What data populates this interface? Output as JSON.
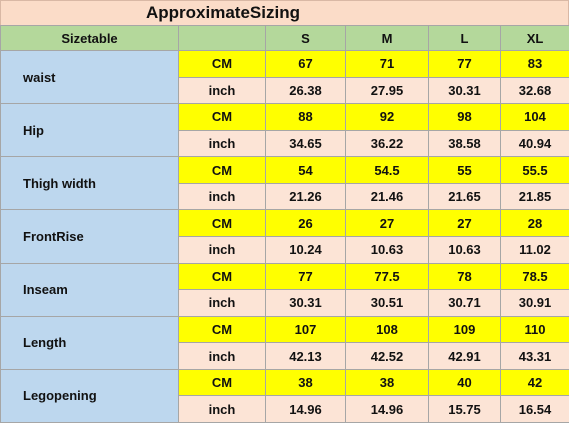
{
  "title": "ApproximateSizing",
  "header": {
    "label": "Sizetable",
    "sizes": [
      "S",
      "M",
      "L",
      "XL"
    ]
  },
  "groups": [
    {
      "name": "waist",
      "rows": [
        {
          "unit": "CM",
          "values": [
            67,
            71,
            77,
            83
          ]
        },
        {
          "unit": "inch",
          "values": [
            26.38,
            27.95,
            30.31,
            32.68
          ]
        }
      ]
    },
    {
      "name": "Hip",
      "rows": [
        {
          "unit": "CM",
          "values": [
            88,
            92,
            98,
            104
          ]
        },
        {
          "unit": "inch",
          "values": [
            34.65,
            36.22,
            38.58,
            40.94
          ]
        }
      ]
    },
    {
      "name": "Thigh width",
      "rows": [
        {
          "unit": "CM",
          "values": [
            54,
            54.5,
            55,
            55.5
          ]
        },
        {
          "unit": "inch",
          "values": [
            21.26,
            21.46,
            21.65,
            21.85
          ]
        }
      ]
    },
    {
      "name": "FrontRise",
      "rows": [
        {
          "unit": "CM",
          "values": [
            26,
            27,
            27,
            28
          ]
        },
        {
          "unit": "inch",
          "values": [
            10.24,
            10.63,
            10.63,
            11.02
          ]
        }
      ]
    },
    {
      "name": "Inseam",
      "rows": [
        {
          "unit": "CM",
          "values": [
            77,
            77.5,
            78,
            78.5
          ]
        },
        {
          "unit": "inch",
          "values": [
            30.31,
            30.51,
            30.71,
            30.91
          ]
        }
      ]
    },
    {
      "name": "Length",
      "rows": [
        {
          "unit": "CM",
          "values": [
            107,
            108,
            109,
            110
          ]
        },
        {
          "unit": "inch",
          "values": [
            42.13,
            42.52,
            42.91,
            43.31
          ]
        }
      ]
    },
    {
      "name": "Legopening",
      "rows": [
        {
          "unit": "CM",
          "values": [
            38,
            38,
            40,
            42
          ]
        },
        {
          "unit": "inch",
          "values": [
            14.96,
            14.96,
            15.75,
            16.54
          ]
        }
      ]
    }
  ]
}
